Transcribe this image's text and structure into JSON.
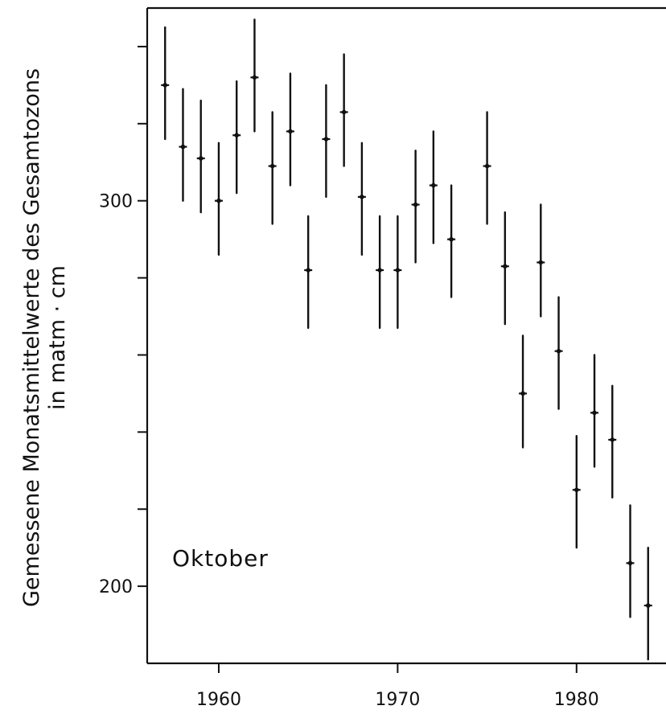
{
  "chart_data": {
    "type": "scatter",
    "title": "",
    "ylabel_lines": [
      "Gemessene Monatsmittelwerte des Gesamtozons",
      "in matm · cm"
    ],
    "xlabel": "",
    "annotation": "Oktober",
    "xlim": [
      1956,
      1985
    ],
    "ylim": [
      180,
      350
    ],
    "x_ticks": [
      1960,
      1970,
      1980
    ],
    "x_tick_labels": [
      "1960",
      "1970",
      "1980"
    ],
    "y_ticks": [
      200,
      300
    ],
    "y_tick_labels": [
      "200",
      "300"
    ],
    "y_minor_ticks": [
      220,
      240,
      260,
      280,
      320,
      340
    ],
    "grid": false,
    "series": [
      {
        "points": [
          {
            "x": 1957,
            "y": 330,
            "low": 316,
            "high": 345
          },
          {
            "x": 1958,
            "y": 314,
            "low": 300,
            "high": 329
          },
          {
            "x": 1959,
            "y": 311,
            "low": 297,
            "high": 326
          },
          {
            "x": 1960,
            "y": 300,
            "low": 286,
            "high": 315
          },
          {
            "x": 1961,
            "y": 317,
            "low": 302,
            "high": 331
          },
          {
            "x": 1962,
            "y": 332,
            "low": 318,
            "high": 347
          },
          {
            "x": 1963,
            "y": 309,
            "low": 294,
            "high": 323
          },
          {
            "x": 1964,
            "y": 318,
            "low": 304,
            "high": 333
          },
          {
            "x": 1965,
            "y": 282,
            "low": 267,
            "high": 296
          },
          {
            "x": 1966,
            "y": 316,
            "low": 301,
            "high": 330
          },
          {
            "x": 1967,
            "y": 323,
            "low": 309,
            "high": 338
          },
          {
            "x": 1968,
            "y": 301,
            "low": 286,
            "high": 315
          },
          {
            "x": 1969,
            "y": 282,
            "low": 267,
            "high": 296
          },
          {
            "x": 1970,
            "y": 282,
            "low": 267,
            "high": 296
          },
          {
            "x": 1971,
            "y": 299,
            "low": 284,
            "high": 313
          },
          {
            "x": 1972,
            "y": 304,
            "low": 289,
            "high": 318
          },
          {
            "x": 1973,
            "y": 290,
            "low": 275,
            "high": 304
          },
          {
            "x": 1975,
            "y": 309,
            "low": 294,
            "high": 323
          },
          {
            "x": 1976,
            "y": 283,
            "low": 268,
            "high": 297
          },
          {
            "x": 1977,
            "y": 250,
            "low": 236,
            "high": 265
          },
          {
            "x": 1978,
            "y": 284,
            "low": 270,
            "high": 299
          },
          {
            "x": 1979,
            "y": 261,
            "low": 246,
            "high": 275
          },
          {
            "x": 1980,
            "y": 225,
            "low": 210,
            "high": 239
          },
          {
            "x": 1981,
            "y": 245,
            "low": 231,
            "high": 260
          },
          {
            "x": 1982,
            "y": 238,
            "low": 223,
            "high": 252
          },
          {
            "x": 1983,
            "y": 206,
            "low": 192,
            "high": 221
          },
          {
            "x": 1984,
            "y": 195,
            "low": 181,
            "high": 210
          }
        ]
      }
    ]
  }
}
